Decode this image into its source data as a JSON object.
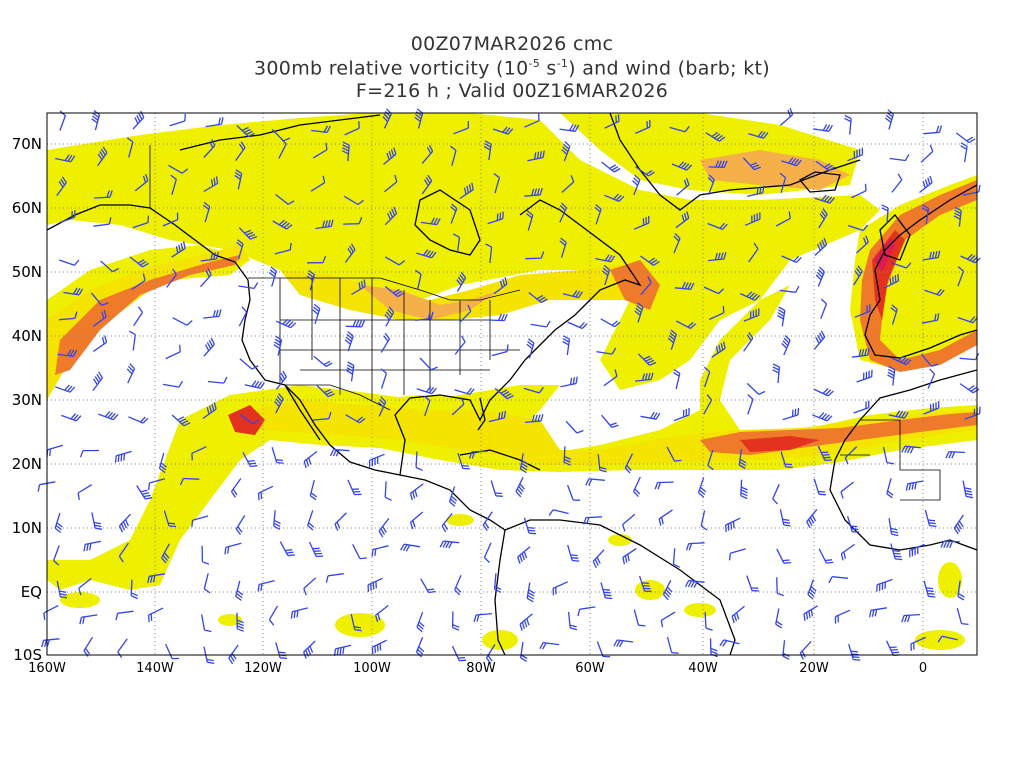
{
  "header": {
    "line1": "00Z07MAR2026 cmc",
    "line2_prefix": "300mb relative vorticity (10",
    "line2_exp1": "-5",
    "line2_mid": " s",
    "line2_exp2": "-1",
    "line2_suffix": ") and wind (barb; kt)",
    "line3": "F=216 h ; Valid 00Z16MAR2026"
  },
  "axes": {
    "lat_labels": [
      "70N",
      "60N",
      "50N",
      "40N",
      "30N",
      "20N",
      "10N",
      "EQ",
      "10S"
    ],
    "lon_labels": [
      "160W",
      "140W",
      "120W",
      "100W",
      "80W",
      "60W",
      "40W",
      "20W",
      "0"
    ]
  },
  "colors": {
    "shade_light": "#eef000",
    "shade_yellow": "#f4e400",
    "shade_orange_light": "#f5b04a",
    "shade_orange": "#ef7a2a",
    "shade_red": "#e3331e",
    "shade_magenta": "#dc1a55",
    "barb": "#3344ee",
    "coast": "#000000",
    "grid": "#888888"
  }
}
